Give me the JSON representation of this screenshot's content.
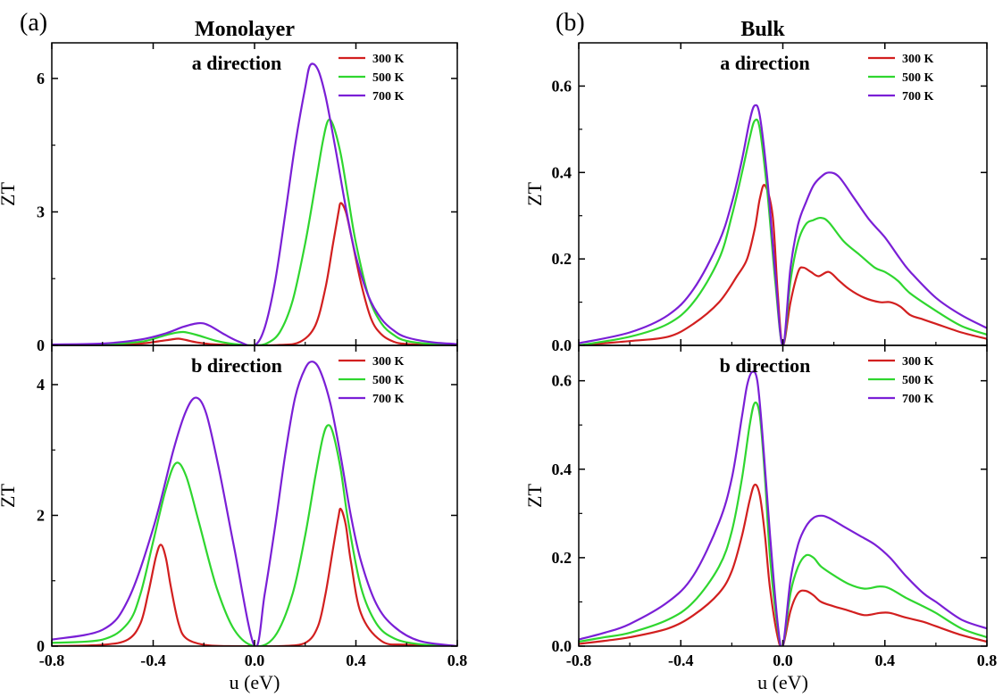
{
  "figure": {
    "panels": [
      {
        "letter": "(a)",
        "title": "Monolayer"
      },
      {
        "letter": "(b)",
        "title": "Bulk"
      }
    ]
  },
  "series_colors": {
    "300 K": "#d21f1f",
    "500 K": "#2fd62f",
    "700 K": "#7a1fd6"
  },
  "chart_data": [
    {
      "type": "line",
      "panel": "(a)",
      "title": "Monolayer",
      "subtitle": "a direction",
      "xlabel": "u (eV)",
      "ylabel": "ZT",
      "xlim": [
        -0.8,
        0.8
      ],
      "ylim": [
        0,
        6.8
      ],
      "x_ticks": [
        "-0.8",
        "-0.4",
        "0.0",
        "0.4",
        "0.8"
      ],
      "y_ticks": [
        "0",
        "3",
        "6"
      ],
      "y_tick_values": [
        0,
        3,
        6
      ],
      "legend": "top-right",
      "series": [
        {
          "name": "300 K",
          "x": [
            -0.8,
            -0.6,
            -0.45,
            -0.38,
            -0.33,
            -0.3,
            -0.27,
            -0.22,
            -0.15,
            0.0,
            0.1,
            0.18,
            0.24,
            0.28,
            0.31,
            0.33,
            0.34,
            0.36,
            0.38,
            0.42,
            0.46,
            0.5,
            0.55,
            0.6,
            0.7,
            0.8
          ],
          "y": [
            0,
            0.01,
            0.04,
            0.09,
            0.13,
            0.15,
            0.12,
            0.06,
            0.02,
            0,
            0.01,
            0.08,
            0.45,
            1.3,
            2.3,
            2.95,
            3.2,
            3.0,
            2.5,
            1.4,
            0.6,
            0.25,
            0.08,
            0.03,
            0.01,
            0
          ]
        },
        {
          "name": "500 K",
          "x": [
            -0.8,
            -0.6,
            -0.45,
            -0.38,
            -0.33,
            -0.28,
            -0.22,
            -0.15,
            -0.08,
            0.0,
            0.05,
            0.1,
            0.15,
            0.2,
            0.24,
            0.27,
            0.29,
            0.31,
            0.34,
            0.37,
            0.4,
            0.45,
            0.5,
            0.55,
            0.6,
            0.7,
            0.8
          ],
          "y": [
            0.01,
            0.02,
            0.08,
            0.18,
            0.26,
            0.3,
            0.22,
            0.1,
            0.03,
            0,
            0.05,
            0.3,
            1.0,
            2.3,
            3.6,
            4.6,
            5.05,
            4.95,
            4.3,
            3.3,
            2.3,
            1.1,
            0.5,
            0.23,
            0.1,
            0.03,
            0.01
          ]
        },
        {
          "name": "700 K",
          "x": [
            -0.8,
            -0.6,
            -0.45,
            -0.35,
            -0.28,
            -0.22,
            -0.18,
            -0.12,
            -0.06,
            0.0,
            0.04,
            0.08,
            0.12,
            0.16,
            0.2,
            0.22,
            0.25,
            0.28,
            0.32,
            0.36,
            0.4,
            0.45,
            0.5,
            0.55,
            0.6,
            0.7,
            0.8
          ],
          "y": [
            0.02,
            0.04,
            0.13,
            0.27,
            0.42,
            0.5,
            0.45,
            0.25,
            0.08,
            0,
            0.4,
            1.4,
            2.9,
            4.5,
            5.8,
            6.3,
            6.2,
            5.6,
            4.4,
            3.1,
            2.0,
            1.1,
            0.6,
            0.33,
            0.18,
            0.07,
            0.03
          ]
        }
      ]
    },
    {
      "type": "line",
      "panel": "(a)",
      "title": "Monolayer",
      "subtitle": "b direction",
      "xlabel": "u (eV)",
      "ylabel": "ZT",
      "xlim": [
        -0.8,
        0.8
      ],
      "ylim": [
        0,
        4.6
      ],
      "x_ticks": [
        "-0.8",
        "-0.4",
        "0.0",
        "0.4",
        "0.8"
      ],
      "y_ticks": [
        "0",
        "2",
        "4"
      ],
      "y_tick_values": [
        0,
        2,
        4
      ],
      "legend": "top-right",
      "series": [
        {
          "name": "300 K",
          "x": [
            -0.8,
            -0.6,
            -0.5,
            -0.45,
            -0.42,
            -0.39,
            -0.37,
            -0.35,
            -0.33,
            -0.3,
            -0.27,
            -0.2,
            -0.1,
            0.0,
            0.1,
            0.2,
            0.25,
            0.28,
            0.31,
            0.33,
            0.34,
            0.36,
            0.38,
            0.42,
            0.5,
            0.6,
            0.8
          ],
          "y": [
            0,
            0.02,
            0.1,
            0.35,
            0.8,
            1.35,
            1.55,
            1.35,
            0.9,
            0.35,
            0.12,
            0.02,
            0,
            0,
            0,
            0.05,
            0.3,
            0.8,
            1.5,
            1.95,
            2.1,
            1.85,
            1.3,
            0.5,
            0.08,
            0.02,
            0
          ]
        },
        {
          "name": "500 K",
          "x": [
            -0.8,
            -0.6,
            -0.5,
            -0.45,
            -0.4,
            -0.35,
            -0.31,
            -0.27,
            -0.22,
            -0.15,
            -0.08,
            0.0,
            0.08,
            0.15,
            0.2,
            0.24,
            0.27,
            0.29,
            0.31,
            0.34,
            0.37,
            0.42,
            0.48,
            0.55,
            0.65,
            0.8
          ],
          "y": [
            0.05,
            0.1,
            0.35,
            0.8,
            1.6,
            2.4,
            2.8,
            2.6,
            1.9,
            0.9,
            0.25,
            0,
            0.15,
            0.8,
            1.7,
            2.6,
            3.2,
            3.38,
            3.25,
            2.7,
            1.9,
            0.9,
            0.35,
            0.12,
            0.03,
            0
          ]
        },
        {
          "name": "700 K",
          "x": [
            -0.8,
            -0.6,
            -0.5,
            -0.4,
            -0.32,
            -0.27,
            -0.23,
            -0.19,
            -0.14,
            -0.08,
            0.0,
            0.04,
            0.08,
            0.12,
            0.16,
            0.2,
            0.23,
            0.26,
            0.3,
            0.34,
            0.38,
            0.42,
            0.48,
            0.55,
            0.65,
            0.8
          ],
          "y": [
            0.1,
            0.25,
            0.7,
            1.8,
            3.0,
            3.6,
            3.8,
            3.55,
            2.7,
            1.5,
            0,
            0.8,
            1.8,
            2.9,
            3.8,
            4.25,
            4.35,
            4.2,
            3.7,
            2.9,
            2.0,
            1.3,
            0.65,
            0.3,
            0.08,
            0
          ]
        }
      ]
    },
    {
      "type": "line",
      "panel": "(b)",
      "title": "Bulk",
      "subtitle": "a direction",
      "xlabel": "u (eV)",
      "ylabel": "ZT",
      "xlim": [
        -0.8,
        0.8
      ],
      "ylim": [
        0,
        0.7
      ],
      "x_ticks": [
        "-0.8",
        "-0.4",
        "0.0",
        "0.4",
        "0.8"
      ],
      "y_ticks": [
        "0.0",
        "0.2",
        "0.4",
        "0.6"
      ],
      "y_tick_values": [
        0,
        0.2,
        0.4,
        0.6
      ],
      "legend": "top-right",
      "series": [
        {
          "name": "300 K",
          "x": [
            -0.8,
            -0.6,
            -0.45,
            -0.35,
            -0.25,
            -0.18,
            -0.14,
            -0.11,
            -0.09,
            -0.07,
            -0.04,
            -0.02,
            0.0,
            0.03,
            0.06,
            0.08,
            0.11,
            0.14,
            0.18,
            0.22,
            0.26,
            0.32,
            0.38,
            0.42,
            0.46,
            0.5,
            0.55,
            0.6,
            0.7,
            0.8
          ],
          "y": [
            0,
            0.01,
            0.02,
            0.05,
            0.1,
            0.16,
            0.2,
            0.27,
            0.34,
            0.37,
            0.3,
            0.12,
            0,
            0.1,
            0.17,
            0.18,
            0.17,
            0.16,
            0.17,
            0.15,
            0.13,
            0.11,
            0.1,
            0.1,
            0.09,
            0.07,
            0.06,
            0.05,
            0.03,
            0.015
          ]
        },
        {
          "name": "500 K",
          "x": [
            -0.8,
            -0.6,
            -0.45,
            -0.35,
            -0.25,
            -0.2,
            -0.16,
            -0.13,
            -0.11,
            -0.09,
            -0.06,
            -0.03,
            0.0,
            0.03,
            0.06,
            0.09,
            0.12,
            0.15,
            0.18,
            0.24,
            0.3,
            0.36,
            0.4,
            0.45,
            0.5,
            0.6,
            0.7,
            0.8
          ],
          "y": [
            0,
            0.02,
            0.05,
            0.1,
            0.2,
            0.3,
            0.4,
            0.48,
            0.52,
            0.5,
            0.35,
            0.15,
            0,
            0.15,
            0.24,
            0.28,
            0.29,
            0.295,
            0.285,
            0.24,
            0.21,
            0.18,
            0.17,
            0.15,
            0.12,
            0.08,
            0.045,
            0.025
          ]
        },
        {
          "name": "700 K",
          "x": [
            -0.8,
            -0.6,
            -0.45,
            -0.35,
            -0.25,
            -0.2,
            -0.16,
            -0.13,
            -0.11,
            -0.09,
            -0.06,
            -0.03,
            0.0,
            0.03,
            0.06,
            0.09,
            0.12,
            0.15,
            0.18,
            0.22,
            0.28,
            0.34,
            0.4,
            0.46,
            0.5,
            0.6,
            0.7,
            0.8
          ],
          "y": [
            0.005,
            0.03,
            0.07,
            0.13,
            0.24,
            0.33,
            0.43,
            0.52,
            0.555,
            0.53,
            0.38,
            0.17,
            0,
            0.18,
            0.28,
            0.33,
            0.37,
            0.39,
            0.4,
            0.39,
            0.34,
            0.29,
            0.25,
            0.2,
            0.17,
            0.11,
            0.07,
            0.04
          ]
        }
      ]
    },
    {
      "type": "line",
      "panel": "(b)",
      "title": "Bulk",
      "subtitle": "b direction",
      "xlabel": "u (eV)",
      "ylabel": "ZT",
      "xlim": [
        -0.8,
        0.8
      ],
      "ylim": [
        0,
        0.68
      ],
      "x_ticks": [
        "-0.8",
        "-0.4",
        "0.0",
        "0.4",
        "0.8"
      ],
      "y_ticks": [
        "0.0",
        "0.2",
        "0.4",
        "0.6"
      ],
      "y_tick_values": [
        0,
        0.2,
        0.4,
        0.6
      ],
      "legend": "top-right",
      "series": [
        {
          "name": "300 K",
          "x": [
            -0.8,
            -0.7,
            -0.6,
            -0.45,
            -0.35,
            -0.25,
            -0.2,
            -0.16,
            -0.13,
            -0.11,
            -0.09,
            -0.07,
            -0.05,
            -0.02,
            0.0,
            0.03,
            0.06,
            0.09,
            0.12,
            0.15,
            0.2,
            0.26,
            0.32,
            0.38,
            0.42,
            0.48,
            0.55,
            0.6,
            0.7,
            0.8
          ],
          "y": [
            0.005,
            0.012,
            0.02,
            0.04,
            0.07,
            0.12,
            0.17,
            0.25,
            0.33,
            0.365,
            0.34,
            0.25,
            0.13,
            0.02,
            0,
            0.08,
            0.12,
            0.125,
            0.115,
            0.1,
            0.09,
            0.08,
            0.07,
            0.075,
            0.075,
            0.065,
            0.055,
            0.045,
            0.025,
            0.01
          ]
        },
        {
          "name": "500 K",
          "x": [
            -0.8,
            -0.7,
            -0.6,
            -0.45,
            -0.35,
            -0.25,
            -0.2,
            -0.16,
            -0.13,
            -0.11,
            -0.09,
            -0.07,
            -0.05,
            -0.02,
            0.0,
            0.03,
            0.06,
            0.09,
            0.12,
            0.15,
            0.2,
            0.26,
            0.32,
            0.38,
            0.42,
            0.48,
            0.55,
            0.6,
            0.7,
            0.8
          ],
          "y": [
            0.01,
            0.02,
            0.03,
            0.06,
            0.1,
            0.18,
            0.26,
            0.38,
            0.5,
            0.55,
            0.52,
            0.38,
            0.2,
            0.04,
            0,
            0.12,
            0.18,
            0.205,
            0.2,
            0.18,
            0.16,
            0.14,
            0.13,
            0.135,
            0.13,
            0.11,
            0.09,
            0.075,
            0.04,
            0.02
          ]
        },
        {
          "name": "700 K",
          "x": [
            -0.8,
            -0.7,
            -0.6,
            -0.45,
            -0.35,
            -0.25,
            -0.2,
            -0.16,
            -0.14,
            -0.12,
            -0.1,
            -0.08,
            -0.05,
            -0.02,
            0.0,
            0.03,
            0.06,
            0.09,
            0.12,
            0.15,
            0.18,
            0.24,
            0.3,
            0.36,
            0.42,
            0.48,
            0.55,
            0.6,
            0.7,
            0.8
          ],
          "y": [
            0.015,
            0.03,
            0.05,
            0.1,
            0.16,
            0.28,
            0.38,
            0.52,
            0.59,
            0.62,
            0.6,
            0.48,
            0.25,
            0.05,
            0,
            0.15,
            0.23,
            0.27,
            0.29,
            0.295,
            0.29,
            0.27,
            0.25,
            0.23,
            0.2,
            0.16,
            0.12,
            0.1,
            0.06,
            0.04
          ]
        }
      ]
    }
  ]
}
